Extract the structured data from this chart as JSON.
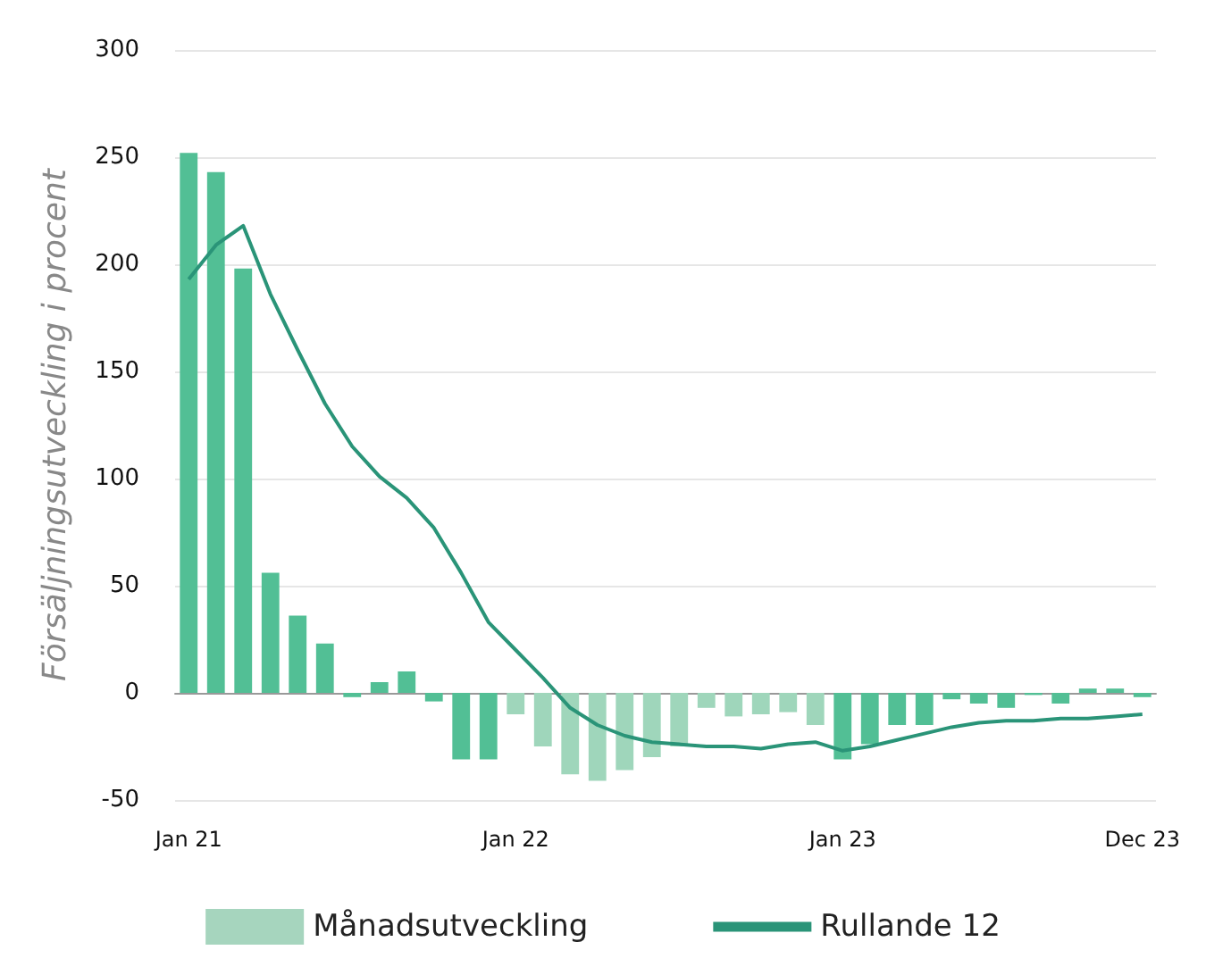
{
  "chart_data": {
    "type": "bar",
    "ylabel": "Försäljningsutveckling i procent",
    "categories": [
      "Jan 21",
      null,
      null,
      null,
      null,
      null,
      null,
      null,
      null,
      null,
      null,
      null,
      "Jan 22",
      null,
      null,
      null,
      null,
      null,
      null,
      null,
      null,
      null,
      null,
      null,
      "Jan 23",
      null,
      null,
      null,
      null,
      null,
      null,
      null,
      null,
      null,
      null,
      "Dec 23"
    ],
    "series": [
      {
        "name": "Månadsutveckling",
        "color": "#a6d5be",
        "colors": [
          "#52bf95",
          "#52bf95",
          "#52bf95",
          "#52bf95",
          "#52bf95",
          "#52bf95",
          "#52bf95",
          "#52bf95",
          "#52bf95",
          "#52bf95",
          "#52bf95",
          "#52bf95",
          "#9fd6bb",
          "#9fd6bb",
          "#9fd6bb",
          "#9fd6bb",
          "#9fd6bb",
          "#9fd6bb",
          "#9fd6bb",
          "#9fd6bb",
          "#9fd6bb",
          "#9fd6bb",
          "#9fd6bb",
          "#9fd6bb",
          "#52bf95",
          "#52bf95",
          "#52bf95",
          "#52bf95",
          "#52bf95",
          "#52bf95",
          "#52bf95",
          "#52bf95",
          "#52bf95",
          "#52bf95",
          "#52bf95",
          "#52bf95"
        ],
        "values": [
          252,
          243,
          198,
          56,
          36,
          23,
          -2,
          5,
          10,
          -4,
          -31,
          -31,
          -10,
          -25,
          -38,
          -41,
          -36,
          -30,
          -25,
          -7,
          -11,
          -10,
          -9,
          -15,
          -31,
          -24,
          -15,
          -15,
          -3,
          -5,
          -7,
          -1,
          -5,
          2,
          2,
          -2
        ]
      },
      {
        "name": "Rullande 12",
        "type": "line",
        "color": "#2a9478",
        "values": [
          193,
          209,
          218,
          186,
          160,
          135,
          115,
          101,
          91,
          77,
          56,
          33,
          20,
          7,
          -7,
          -15,
          -20,
          -23,
          -24,
          -25,
          -25,
          -26,
          -24,
          -23,
          -27,
          -25,
          -22,
          -19,
          -16,
          -14,
          -13,
          -13,
          -12,
          -12,
          -11,
          -10
        ]
      }
    ],
    "ylim": [
      -50,
      300
    ],
    "yticks": [
      -50,
      0,
      50,
      100,
      150,
      200,
      250,
      300
    ],
    "grid": "y",
    "legend": "bottom",
    "marker": "none",
    "line_style": "solid"
  }
}
